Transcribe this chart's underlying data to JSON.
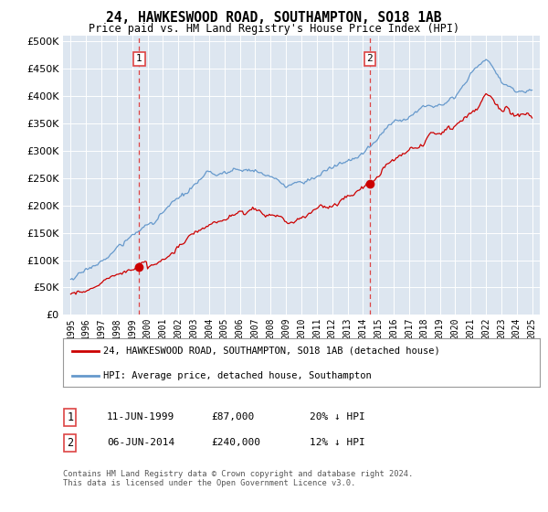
{
  "title": "24, HAWKESWOOD ROAD, SOUTHAMPTON, SO18 1AB",
  "subtitle": "Price paid vs. HM Land Registry's House Price Index (HPI)",
  "property_label": "24, HAWKESWOOD ROAD, SOUTHAMPTON, SO18 1AB (detached house)",
  "hpi_label": "HPI: Average price, detached house, Southampton",
  "footnote": "Contains HM Land Registry data © Crown copyright and database right 2024.\nThis data is licensed under the Open Government Licence v3.0.",
  "sale1_date": "11-JUN-1999",
  "sale1_price": "£87,000",
  "sale1_hpi": "20% ↓ HPI",
  "sale1_year": 1999.45,
  "sale1_value": 87000,
  "sale2_date": "06-JUN-2014",
  "sale2_price": "£240,000",
  "sale2_hpi": "12% ↓ HPI",
  "sale2_year": 2014.45,
  "sale2_value": 240000,
  "ylim": [
    0,
    510000
  ],
  "yticks": [
    0,
    50000,
    100000,
    150000,
    200000,
    250000,
    300000,
    350000,
    400000,
    450000,
    500000
  ],
  "xlim": [
    1994.5,
    2025.5
  ],
  "xticks": [
    1995,
    1996,
    1997,
    1998,
    1999,
    2000,
    2001,
    2002,
    2003,
    2004,
    2005,
    2006,
    2007,
    2008,
    2009,
    2010,
    2011,
    2012,
    2013,
    2014,
    2015,
    2016,
    2017,
    2018,
    2019,
    2020,
    2021,
    2022,
    2023,
    2024,
    2025
  ],
  "property_color": "#cc0000",
  "hpi_color": "#6699cc",
  "bg_color": "#dde6f0",
  "grid_color": "#ffffff",
  "vline_color": "#dd4444"
}
